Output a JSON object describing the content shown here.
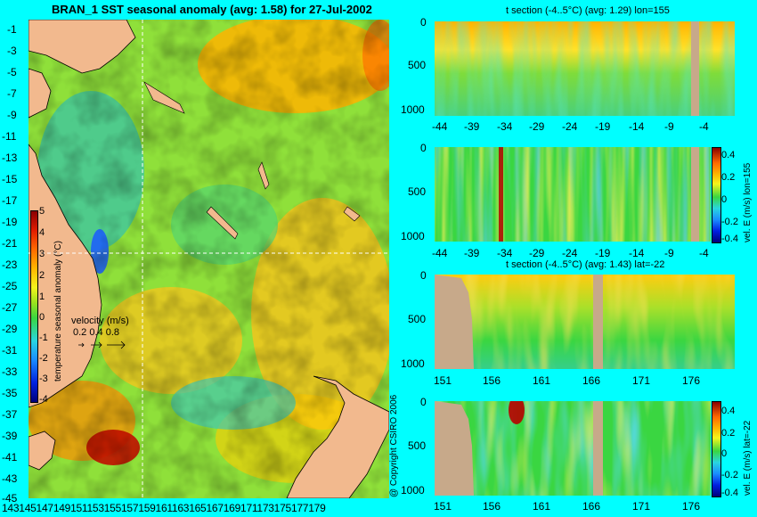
{
  "colors": {
    "background": "#00ffff",
    "land": "#f2b98e",
    "section_land": "#c7a98a"
  },
  "map": {
    "title": "BRAN_1 SST seasonal anomaly (avg: 1.58) for 27-Jul-2002",
    "y_ticks": [
      "-1",
      "-3",
      "-5",
      "-7",
      "-9",
      "-11",
      "-13",
      "-15",
      "-17",
      "-19",
      "-21",
      "-23",
      "-25",
      "-27",
      "-29",
      "-31",
      "-33",
      "-35",
      "-37",
      "-39",
      "-41",
      "-43",
      "-45"
    ],
    "x_ticks_text": "143145147149151153155157159161163165167169171173175177179",
    "colorbar_label": "temperature seasonal anomaly (°C)",
    "colorbar_ticks": [
      "5",
      "4",
      "3",
      "2",
      "1",
      "0",
      "-1",
      "-2",
      "-3",
      "-4"
    ],
    "velocity_legend": {
      "label": "velocity (m/s)",
      "values": "0.2 0.4 0.8"
    },
    "copyright": "@ Copyright CSIRO 2006"
  },
  "sections": {
    "panel1": {
      "title": "t section (-4..5°C) (avg: 1.29) lon=155"
    },
    "panel2": {
      "colorbar_label": "vel. E (m/s) lon=155",
      "colorbar_ticks": [
        "0.4",
        "0.2",
        "0",
        "-0.2",
        "-0.4"
      ]
    },
    "panel3": {
      "title": "t section (-4..5°C) (avg: 1.43) lat=-22"
    },
    "panel4": {
      "colorbar_label": "vel. E (m/s) lat=-22",
      "colorbar_ticks": [
        "0.4",
        "0.2",
        "0",
        "-0.2",
        "-0.4"
      ]
    },
    "depth_ticks": [
      "0",
      "500",
      "1000"
    ],
    "lat_ticks": [
      "-44",
      "-39",
      "-34",
      "-29",
      "-24",
      "-19",
      "-14",
      "-9",
      "-4"
    ],
    "lon_ticks": [
      "151",
      "156",
      "161",
      "166",
      "171",
      "176"
    ]
  },
  "chart_data": [
    {
      "type": "heatmap",
      "title": "BRAN_1 SST seasonal anomaly (avg: 1.58) for 27-Jul-2002",
      "x": [
        143,
        145,
        147,
        149,
        151,
        153,
        155,
        157,
        159,
        161,
        163,
        165,
        167,
        169,
        171,
        173,
        175,
        177,
        179
      ],
      "y": [
        -1,
        -3,
        -5,
        -7,
        -9,
        -11,
        -13,
        -15,
        -17,
        -19,
        -21,
        -23,
        -25,
        -27,
        -29,
        -31,
        -33,
        -35,
        -37,
        -39,
        -41,
        -43,
        -45
      ],
      "colorbar": {
        "label": "temperature seasonal anomaly (°C)",
        "range": [
          -4,
          5
        ]
      },
      "average": 1.58,
      "crosshair": {
        "lon": 155,
        "lat": -22
      }
    },
    {
      "type": "heatmap",
      "title": "t section (-4..5°C) (avg: 1.29) lon=155",
      "x": [
        -44,
        -39,
        -34,
        -29,
        -24,
        -19,
        -14,
        -9,
        -4
      ],
      "y": [
        0,
        500,
        1000
      ],
      "average": 1.29,
      "value_range": [
        -4,
        5
      ]
    },
    {
      "type": "heatmap",
      "x": [
        -44,
        -39,
        -34,
        -29,
        -24,
        -19,
        -14,
        -9,
        -4
      ],
      "y": [
        0,
        500,
        1000
      ],
      "colorbar": {
        "label": "vel. E (m/s) lon=155",
        "range": [
          -0.4,
          0.4
        ]
      }
    },
    {
      "type": "heatmap",
      "title": "t section (-4..5°C) (avg: 1.43) lat=-22",
      "x": [
        151,
        156,
        161,
        166,
        171,
        176
      ],
      "y": [
        0,
        500,
        1000
      ],
      "average": 1.43,
      "value_range": [
        -4,
        5
      ]
    },
    {
      "type": "heatmap",
      "x": [
        151,
        156,
        161,
        166,
        171,
        176
      ],
      "y": [
        0,
        500,
        1000
      ],
      "colorbar": {
        "label": "vel. E (m/s) lat=-22",
        "range": [
          -0.4,
          0.4
        ]
      }
    }
  ]
}
